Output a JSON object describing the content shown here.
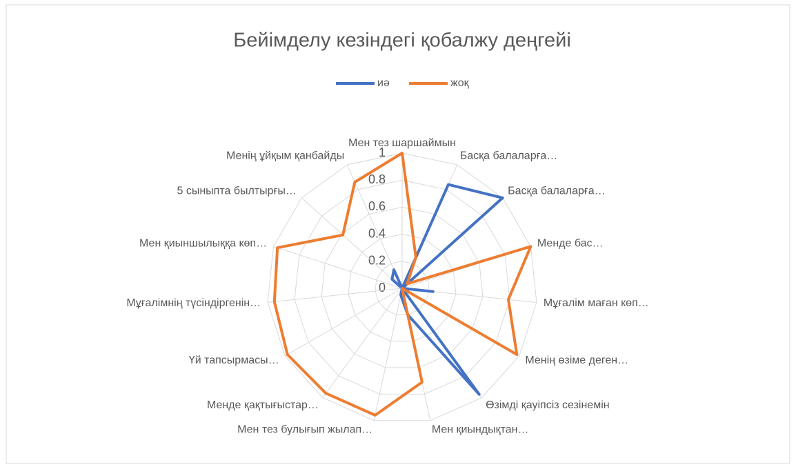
{
  "chart_data": {
    "type": "radar",
    "title": "Бейімделу кезіндегі қобалжу деңгейі",
    "categories": [
      "Мен тез шаршаймын",
      "Басқа балаларға…",
      "Басқа балаларға…",
      "Менде бас…",
      "Мұғалім маған көп…",
      "Менің өзіме деген…",
      "Өзімді қауіпсіз сезінемін",
      "Мен қиындықтан…",
      "Мен тез булығып жылап…",
      "Менде қақтығыстар…",
      "Үй тапсырмасы…",
      "Мұғалімнің түсіндіргенін…",
      "Мен қиыншылыққа көп…",
      "5  сыныпта былтырғы…",
      "Менің ұйқым қанбайды"
    ],
    "series": [
      {
        "name": "иә",
        "color": "#4472c4",
        "values": [
          0,
          0.84,
          1.0,
          0,
          0.23,
          0,
          0.97,
          0.2,
          0.05,
          0,
          0,
          0,
          0,
          0.1,
          0.15
        ]
      },
      {
        "name": "жоқ",
        "color": "#ed7d31",
        "values": [
          1.0,
          0.25,
          0.05,
          1.0,
          0.79,
          0.98,
          0,
          0.71,
          0.96,
          0.96,
          0.98,
          0.95,
          0.97,
          0.59,
          0.86
        ]
      }
    ],
    "ylim": [
      0,
      1
    ],
    "yticks": [
      0,
      0.2,
      0.4,
      0.6,
      0.8,
      1
    ],
    "grid": true,
    "legend": "top"
  }
}
